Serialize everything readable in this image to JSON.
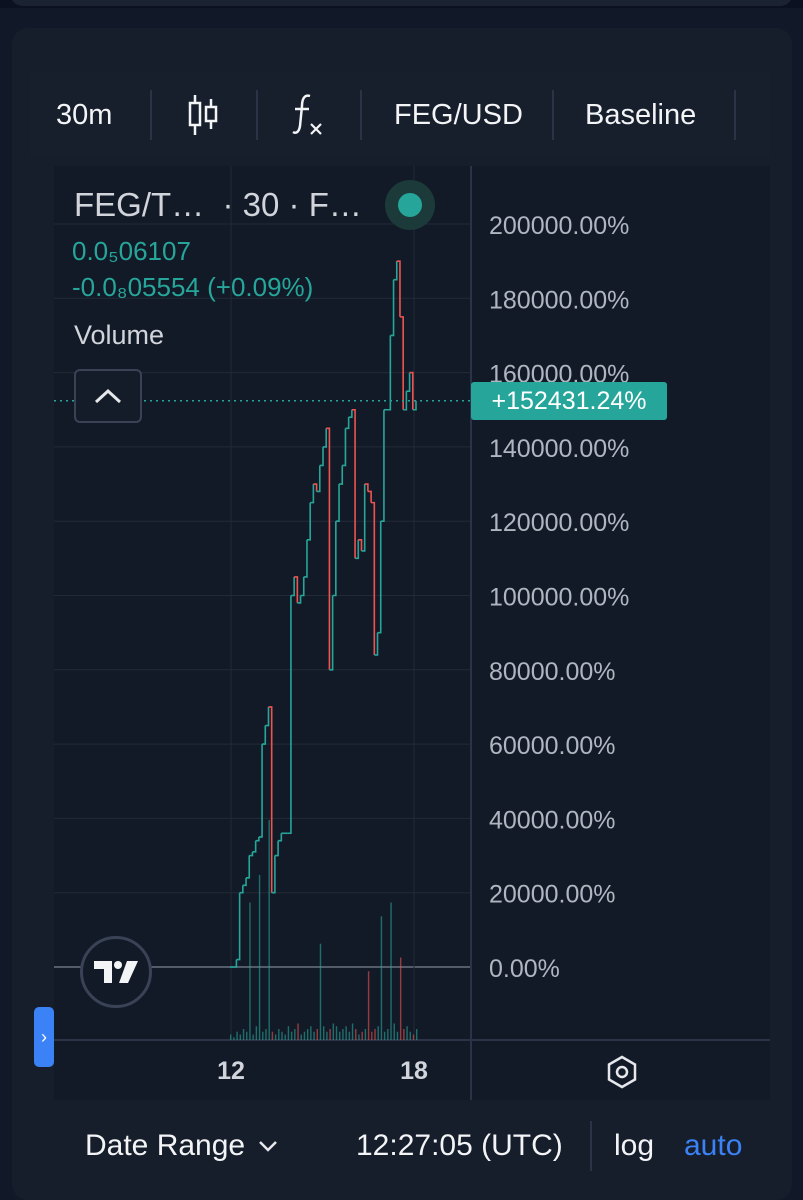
{
  "toolbar": {
    "interval": "30m",
    "symbol": "FEG/USD",
    "chart_style": "Baseline"
  },
  "legend": {
    "title": "FEG/T…  · 30 · F…",
    "value_line_1": "0.0₅06107",
    "value_line_2": "-0.0₈05554 (+0.09%)",
    "volume_label": "Volume"
  },
  "price_badge": "+152431.24%",
  "bottom_bar": {
    "date_range": "Date Range",
    "time": "12:27:05 (UTC)",
    "log": "log",
    "auto": "auto"
  },
  "colors": {
    "up": "#26a69a",
    "down": "#ef5350",
    "accent": "#3b82f6"
  },
  "chart_data": {
    "type": "line",
    "title": "FEG/USD",
    "scale": "percent",
    "x_ticks": [
      "12",
      "18"
    ],
    "y_ticks": [
      "200000.00%",
      "180000.00%",
      "160000.00%",
      "140000.00%",
      "120000.00%",
      "100000.00%",
      "80000.00%",
      "60000.00%",
      "40000.00%",
      "20000.00%",
      "0.00%"
    ],
    "ylim": [
      -20000,
      220000
    ],
    "baseline": 0,
    "last_value_percent": 152431.24,
    "grid": true,
    "series": [
      {
        "values": [
          0,
          0,
          2000,
          20000,
          22000,
          24000,
          30000,
          31000,
          34000,
          35000,
          60000,
          65000,
          70000,
          20000,
          30000,
          34000,
          36000,
          36000,
          36000,
          100000,
          105000,
          98000,
          100000,
          105000,
          115000,
          125000,
          130000,
          128000,
          135000,
          140000,
          145000,
          80000,
          100000,
          120000,
          130000,
          135000,
          145000,
          148000,
          150000,
          110000,
          115000,
          112000,
          130000,
          128000,
          125000,
          84000,
          90000,
          120000,
          150000,
          150000,
          170000,
          185000,
          190000,
          175000,
          150000,
          155000,
          160000,
          150000,
          152431
        ]
      }
    ],
    "volume": [
      2,
      1,
      3,
      2,
      4,
      3,
      50,
      2,
      5,
      60,
      3,
      4,
      80,
      3,
      2,
      4,
      3,
      2,
      5,
      3,
      4,
      6,
      2,
      3,
      4,
      5,
      3,
      4,
      35,
      5,
      3,
      4,
      6,
      5,
      3,
      4,
      5,
      3,
      6,
      4,
      2,
      3,
      4,
      25,
      3,
      4,
      5,
      45,
      3,
      4,
      50,
      6,
      3,
      30,
      4,
      5,
      3,
      2,
      4
    ]
  }
}
